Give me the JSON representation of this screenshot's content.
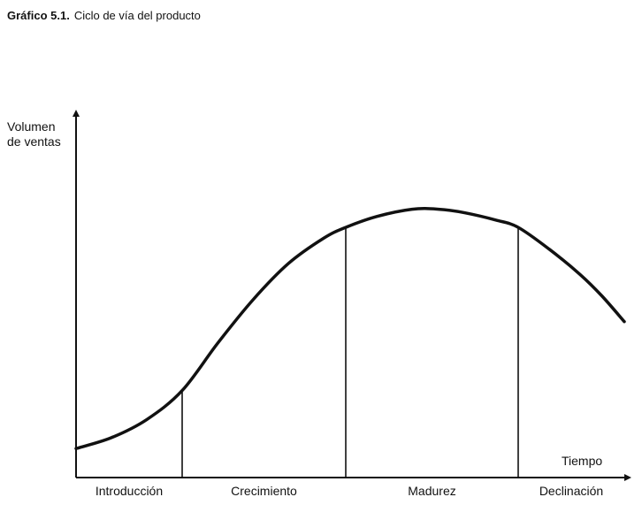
{
  "chart_data": {
    "type": "line",
    "title_number": "Gráfico 5.1.",
    "title_text": "Ciclo de vía del producto",
    "ylabel_lines": [
      "Volumen",
      "de ventas"
    ],
    "xlabel": "Tiempo",
    "stages": [
      {
        "label": "Introducción",
        "start": 0,
        "end": 24
      },
      {
        "label": "Crecimiento",
        "start": 24,
        "end": 61
      },
      {
        "label": "Madurez",
        "start": 61,
        "end": 100
      },
      {
        "label": "Declinación",
        "start": 100,
        "end": 124
      }
    ],
    "boundaries": [
      24,
      61,
      100
    ],
    "series": [
      {
        "x": [
          0,
          8,
          16,
          24,
          32,
          40,
          48,
          56,
          61,
          68,
          76,
          82,
          88,
          95,
          100,
          107,
          114,
          119,
          124
        ],
        "y": [
          8,
          11,
          16,
          24,
          37,
          49,
          59,
          66,
          69,
          72,
          74,
          74,
          73,
          71,
          69,
          63,
          56,
          50,
          43
        ]
      }
    ],
    "xlim": [
      0,
      126
    ],
    "ylim": [
      0,
      100
    ],
    "grid": false,
    "legend": "none",
    "line_color": "#111111"
  }
}
